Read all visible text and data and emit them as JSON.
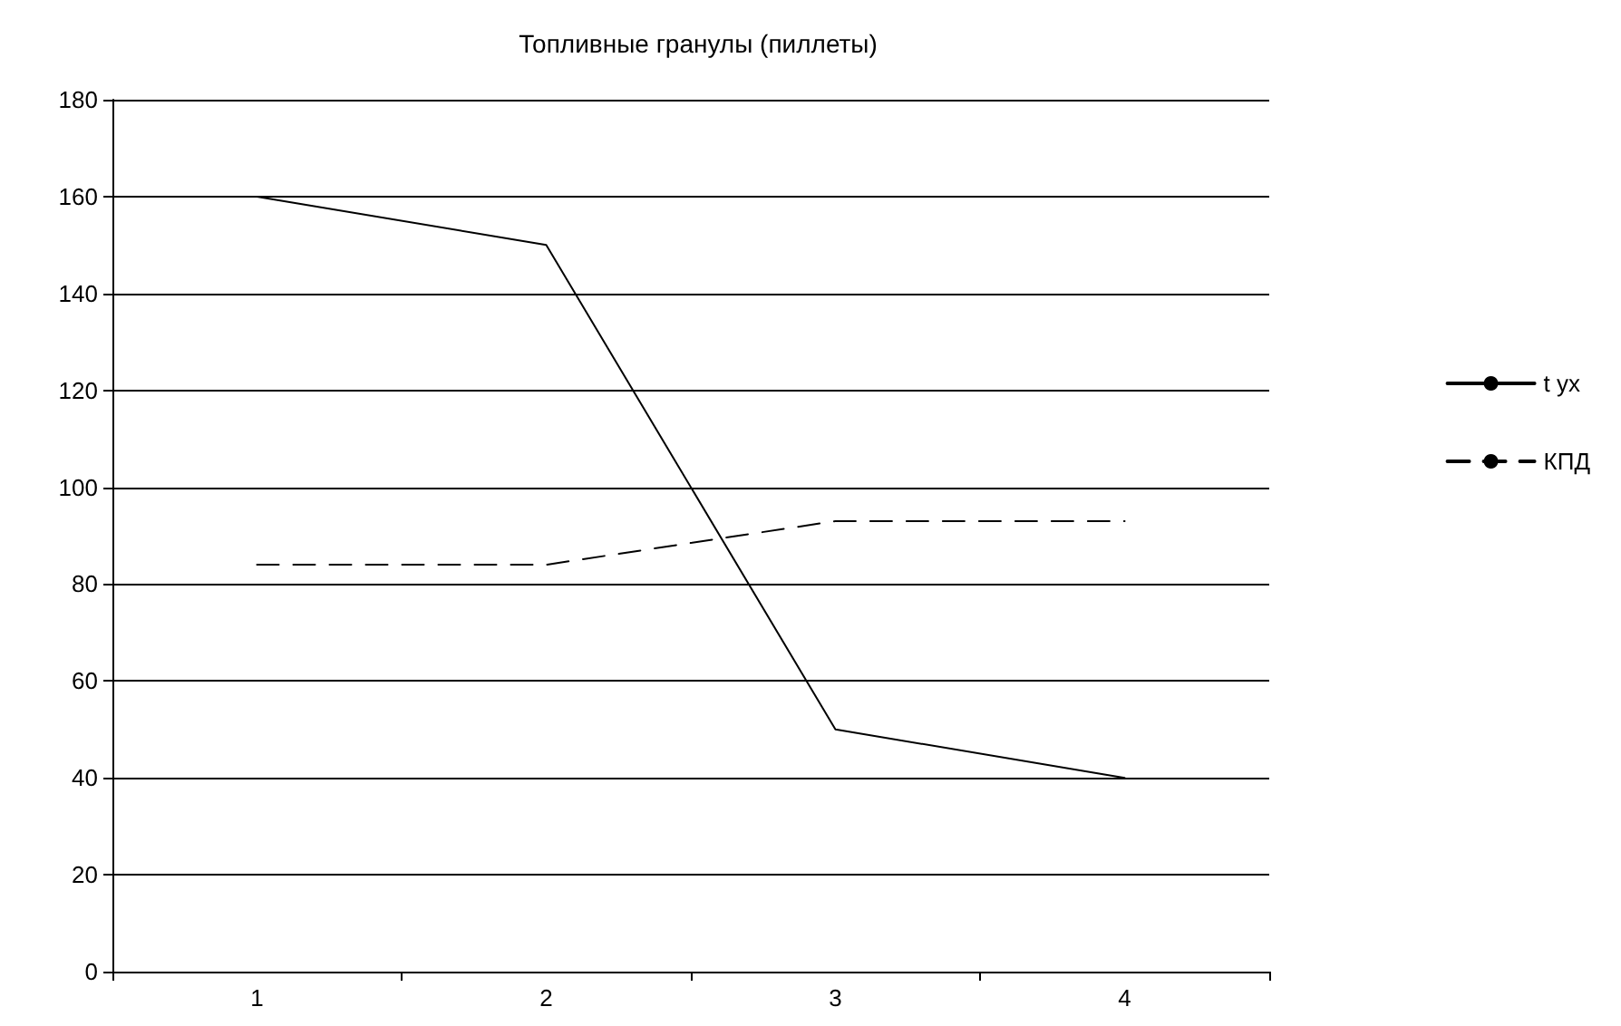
{
  "chart_data": {
    "type": "line",
    "title": "Топливные гранулы (пиллеты)",
    "categories": [
      "1",
      "2",
      "3",
      "4"
    ],
    "series": [
      {
        "name": "t ух",
        "color": "#000000",
        "line_style": "solid",
        "values": [
          160,
          150,
          50,
          40
        ]
      },
      {
        "name": "КПД",
        "color": "#000000",
        "line_style": "dashed",
        "values": [
          84,
          84,
          93,
          93
        ]
      }
    ],
    "ylim": [
      0,
      180
    ],
    "yticks": [
      0,
      20,
      40,
      60,
      80,
      100,
      120,
      140,
      160,
      180
    ],
    "grid": "y",
    "legend": "right",
    "marker": "none"
  }
}
